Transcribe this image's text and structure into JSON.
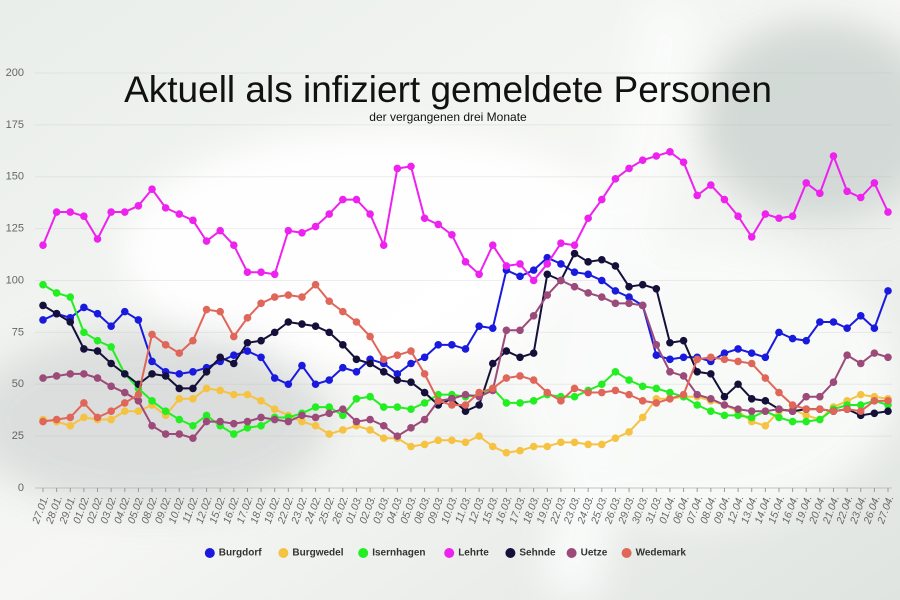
{
  "chart_data": {
    "type": "line",
    "title": "Aktuell als infiziert gemeldete Personen",
    "subtitle": "der vergangenen drei Monate",
    "categories": [
      "27.01.",
      "28.01.",
      "29.01.",
      "01.02.",
      "02.02.",
      "03.02.",
      "04.02.",
      "05.02.",
      "08.02.",
      "09.02.",
      "10.02.",
      "11.02.",
      "12.02.",
      "15.02.",
      "16.02.",
      "17.02.",
      "18.02.",
      "19.02.",
      "22.02.",
      "23.02.",
      "24.02.",
      "25.02.",
      "26.02.",
      "01.03.",
      "02.03.",
      "03.03.",
      "04.03.",
      "05.03.",
      "08.03.",
      "09.03.",
      "10.03.",
      "11.03.",
      "12.03.",
      "15.03.",
      "16.03.",
      "17.03.",
      "18.03.",
      "19.03.",
      "22.03.",
      "23.03.",
      "24.03.",
      "25.03.",
      "26.03.",
      "29.03.",
      "30.03.",
      "31.03.",
      "01.04.",
      "06.04.",
      "07.04.",
      "08.04.",
      "09.04.",
      "12.04.",
      "13.04.",
      "14.04.",
      "15.04.",
      "16.04.",
      "19.04.",
      "20.04.",
      "21.04.",
      "22.04.",
      "23.04.",
      "26.04.",
      "27.04."
    ],
    "ylim": [
      0,
      200
    ],
    "yticks": [
      0,
      25,
      50,
      75,
      100,
      125,
      150,
      175,
      200
    ],
    "series": [
      {
        "name": "Burgdorf",
        "color": "#1a1adf",
        "values": [
          81,
          84,
          82,
          87,
          84,
          78,
          85,
          81,
          61,
          56,
          55,
          56,
          58,
          61,
          64,
          66,
          63,
          53,
          50,
          59,
          50,
          52,
          58,
          56,
          62,
          60,
          55,
          60,
          63,
          69,
          69,
          67,
          78,
          77,
          105,
          102,
          105,
          111,
          108,
          104,
          103,
          100,
          95,
          92,
          88,
          64,
          62,
          63,
          63,
          61,
          65,
          67,
          65,
          63,
          75,
          72,
          71,
          80,
          80,
          77,
          83,
          77,
          95
        ]
      },
      {
        "name": "Burgwedel",
        "color": "#f5c242",
        "values": [
          33,
          32,
          30,
          34,
          33,
          33,
          37,
          37,
          40,
          35,
          43,
          43,
          48,
          47,
          45,
          45,
          42,
          38,
          35,
          32,
          30,
          26,
          28,
          30,
          28,
          24,
          24,
          20,
          21,
          23,
          23,
          22,
          25,
          20,
          17,
          18,
          20,
          20,
          22,
          22,
          21,
          21,
          24,
          27,
          34,
          43,
          43,
          44,
          44,
          42,
          40,
          37,
          32,
          30,
          37,
          38,
          35,
          33,
          39,
          42,
          45,
          44,
          43
        ]
      },
      {
        "name": "Isernhagen",
        "color": "#22ee22",
        "values": [
          98,
          94,
          92,
          75,
          71,
          68,
          55,
          48,
          42,
          37,
          33,
          30,
          35,
          30,
          26,
          29,
          30,
          34,
          34,
          36,
          39,
          39,
          35,
          43,
          44,
          39,
          39,
          38,
          41,
          45,
          45,
          44,
          45,
          48,
          41,
          41,
          42,
          45,
          44,
          44,
          47,
          50,
          56,
          52,
          49,
          48,
          46,
          44,
          40,
          37,
          35,
          35,
          34,
          37,
          34,
          32,
          32,
          33,
          38,
          40,
          40,
          42,
          40
        ]
      },
      {
        "name": "Lehrte",
        "color": "#ee22ee",
        "values": [
          117,
          133,
          133,
          131,
          120,
          133,
          133,
          136,
          144,
          135,
          132,
          129,
          119,
          124,
          117,
          104,
          104,
          103,
          124,
          123,
          126,
          132,
          139,
          139,
          132,
          117,
          154,
          155,
          130,
          127,
          122,
          109,
          103,
          117,
          107,
          108,
          100,
          108,
          118,
          117,
          130,
          139,
          149,
          154,
          158,
          160,
          162,
          157,
          141,
          146,
          139,
          131,
          121,
          132,
          130,
          131,
          147,
          142,
          160,
          143,
          140,
          147,
          133
        ]
      },
      {
        "name": "Sehnde",
        "color": "#15103a",
        "values": [
          88,
          84,
          80,
          67,
          66,
          60,
          55,
          50,
          55,
          54,
          48,
          48,
          56,
          63,
          60,
          70,
          71,
          75,
          80,
          79,
          78,
          75,
          69,
          62,
          60,
          56,
          52,
          51,
          46,
          40,
          43,
          37,
          40,
          60,
          66,
          63,
          65,
          103,
          100,
          113,
          109,
          110,
          107,
          97,
          98,
          96,
          70,
          71,
          56,
          55,
          44,
          50,
          43,
          42,
          38,
          37,
          38,
          38,
          37,
          38,
          35,
          36,
          37
        ]
      },
      {
        "name": "Uetze",
        "color": "#9c4a7a",
        "values": [
          53,
          54,
          55,
          55,
          53,
          49,
          46,
          42,
          30,
          26,
          26,
          24,
          32,
          32,
          31,
          32,
          34,
          33,
          32,
          35,
          34,
          36,
          38,
          32,
          33,
          30,
          25,
          29,
          33,
          42,
          43,
          45,
          44,
          47,
          76,
          76,
          83,
          93,
          100,
          97,
          94,
          92,
          89,
          89,
          88,
          69,
          56,
          54,
          45,
          43,
          40,
          38,
          37,
          37,
          38,
          37,
          44,
          44,
          51,
          64,
          60,
          65,
          63
        ]
      },
      {
        "name": "Wedemark",
        "color": "#e0665a",
        "values": [
          32,
          33,
          34,
          41,
          34,
          37,
          41,
          45,
          74,
          69,
          65,
          71,
          86,
          85,
          73,
          82,
          89,
          92,
          93,
          92,
          98,
          90,
          85,
          80,
          73,
          62,
          64,
          66,
          55,
          42,
          40,
          40,
          46,
          48,
          53,
          54,
          52,
          46,
          42,
          48,
          46,
          46,
          47,
          45,
          42,
          41,
          43,
          45,
          62,
          63,
          62,
          61,
          60,
          53,
          46,
          40,
          38,
          38,
          37,
          38,
          37,
          42,
          42
        ]
      }
    ]
  }
}
